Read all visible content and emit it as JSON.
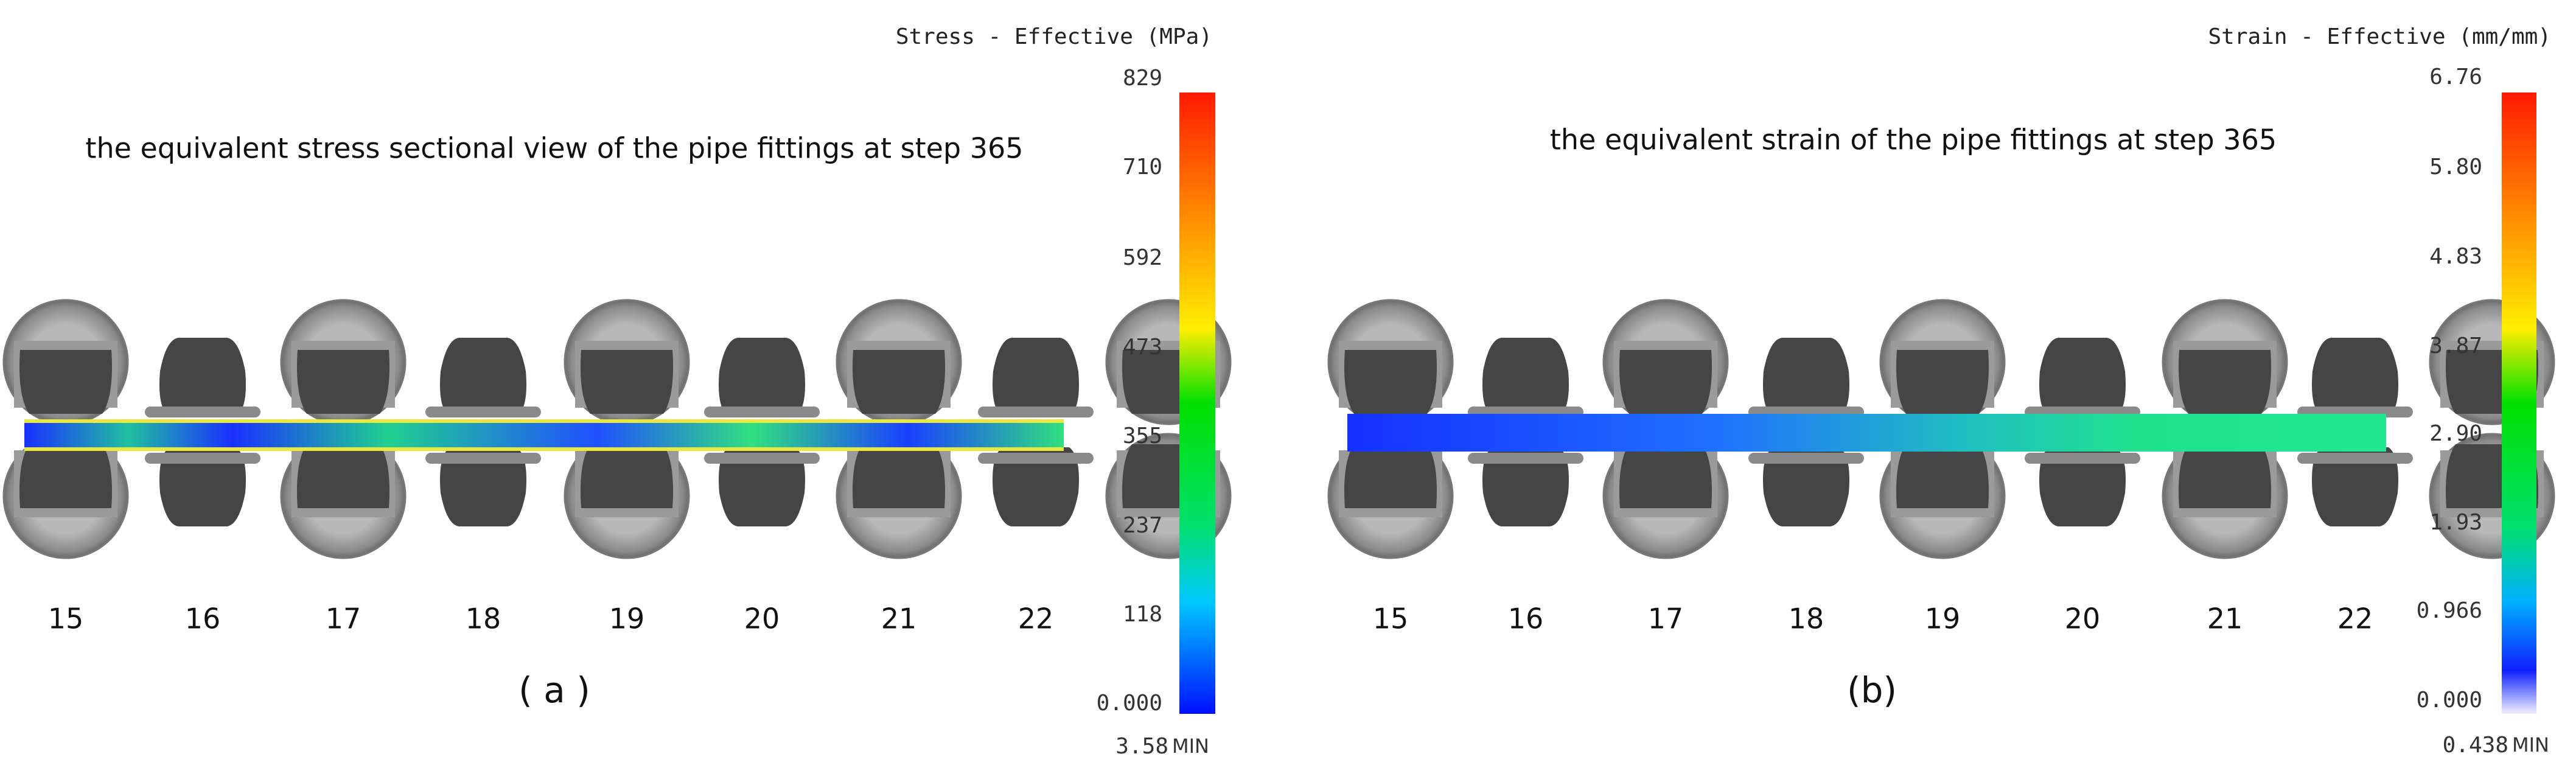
{
  "panels": [
    {
      "title": "the equivalent stress sectional view of the pipe fittings at step 365",
      "legend_title": "Stress - Effective (MPa)",
      "legend_ticks": [
        "829",
        "710",
        "592",
        "473",
        "355",
        "237",
        "118",
        "0.000"
      ],
      "min_value": "3.58",
      "min_word": "MIN",
      "stands": [
        "15",
        "16",
        "17",
        "18",
        "19",
        "20",
        "21",
        "22"
      ],
      "caption": "( a )"
    },
    {
      "title": "the equivalent strain of the pipe fittings at step 365",
      "legend_title": "Strain - Effective (mm/mm)",
      "legend_ticks": [
        "6.76",
        "5.80",
        "4.83",
        "3.87",
        "2.90",
        "1.93",
        "0.966",
        "0.000"
      ],
      "min_value": "0.438",
      "min_word": "MIN",
      "stands": [
        "15",
        "16",
        "17",
        "18",
        "19",
        "20",
        "21",
        "22"
      ],
      "caption": "(b)"
    }
  ]
}
